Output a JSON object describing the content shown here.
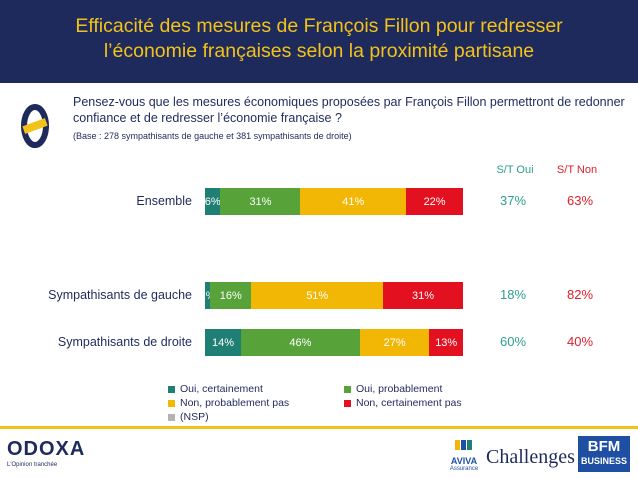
{
  "header": {
    "title": "Efficacité des mesures de François Fillon pour redresser\nl’économie françaises selon la proximité partisane"
  },
  "question": {
    "text": "Pensez-vous que les mesures économiques proposées par François Fillon permettront de redonner confiance et de redresser l’économie française ?",
    "base": "(Base : 278 sympathisants de gauche et 381 sympathisants de droite)"
  },
  "columns": {
    "st_oui": "S/T Oui",
    "st_non": "S/T Non"
  },
  "colors": {
    "header_bg": "#1f2a5c",
    "title": "#f3c21a",
    "oui_certainement": "#1f7f74",
    "oui_probablement": "#57a33a",
    "non_probablement_pas": "#f2b705",
    "non_certainement_pas": "#e3101f",
    "nsp": "#b3b3b3",
    "st_oui": "#2e9e8d",
    "st_non": "#e0202a"
  },
  "chart_data": {
    "type": "bar",
    "orientation": "horizontal-stacked",
    "categories": [
      "Ensemble",
      "Sympathisants de gauche",
      "Sympathisants de droite"
    ],
    "series": [
      {
        "name": "Oui, certainement",
        "values": [
          6,
          2,
          14
        ],
        "labels": [
          "6%",
          "2%",
          "14%"
        ]
      },
      {
        "name": "Oui, probablement",
        "values": [
          31,
          16,
          46
        ],
        "labels": [
          "31%",
          "16%",
          "46%"
        ]
      },
      {
        "name": "Non, probablement pas",
        "values": [
          41,
          51,
          27
        ],
        "labels": [
          "41%",
          "51%",
          "27%"
        ]
      },
      {
        "name": "Non, certainement pas",
        "values": [
          22,
          31,
          13
        ],
        "labels": [
          "22%",
          "31%",
          "13%"
        ]
      },
      {
        "name": "(NSP)",
        "values": [
          0,
          0,
          0
        ],
        "labels": [
          "",
          "",
          ""
        ]
      }
    ],
    "st_oui": [
      "37%",
      "18%",
      "60%"
    ],
    "st_non": [
      "63%",
      "82%",
      "40%"
    ],
    "xlim": [
      0,
      100
    ],
    "legend_position": "bottom"
  },
  "legend": [
    {
      "label": "Oui, certainement",
      "color": "#1f7f74"
    },
    {
      "label": "Oui, probablement",
      "color": "#57a33a"
    },
    {
      "label": "Non, probablement pas",
      "color": "#f2b705"
    },
    {
      "label": "Non, certainement pas",
      "color": "#e3101f"
    },
    {
      "label": "(NSP)",
      "color": "#b3b3b3"
    }
  ],
  "footer": {
    "odoxa": "ODOXA",
    "odoxa_tagline": "L'Opinion tranchée",
    "aviva": "AVIVA",
    "aviva_sub": "Assurance",
    "challenges": "Challenges",
    "bfm_top": "BFM",
    "bfm_bottom": "BUSINESS"
  }
}
